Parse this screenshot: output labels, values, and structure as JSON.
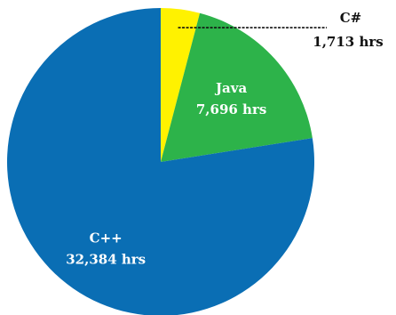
{
  "chart_data": {
    "type": "pie",
    "slices": [
      {
        "label": "C#",
        "value": 1713,
        "value_text": "1,713 hrs",
        "color": "#fff200",
        "label_position": "outside"
      },
      {
        "label": "Java",
        "value": 7696,
        "value_text": "7,696 hrs",
        "color": "#2db34a",
        "label_position": "inside"
      },
      {
        "label": "C++",
        "value": 32384,
        "value_text": "32,384 hrs",
        "color": "#0a6eb4",
        "label_position": "inside"
      }
    ],
    "start_angle": "12 o'clock",
    "direction": "clockwise",
    "legend": "none",
    "title": ""
  }
}
